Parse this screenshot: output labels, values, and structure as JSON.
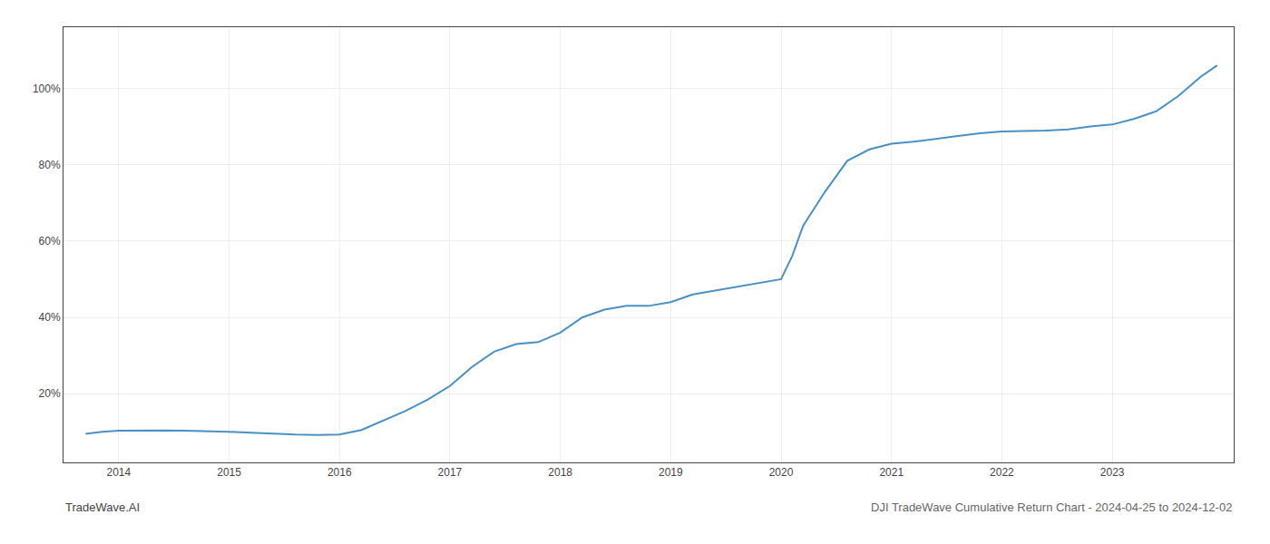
{
  "chart_data": {
    "type": "line",
    "title": "DJI TradeWave Cumulative Return Chart - 2024-04-25 to 2024-12-02",
    "annotations": [
      {
        "text": "TradeWave.AI"
      }
    ],
    "x": [
      2013.7,
      2013.85,
      2014.0,
      2014.2,
      2014.4,
      2014.6,
      2014.8,
      2015.0,
      2015.2,
      2015.4,
      2015.6,
      2015.8,
      2016.0,
      2016.2,
      2016.4,
      2016.6,
      2016.8,
      2017.0,
      2017.2,
      2017.4,
      2017.6,
      2017.8,
      2018.0,
      2018.2,
      2018.4,
      2018.6,
      2018.8,
      2019.0,
      2019.2,
      2019.4,
      2019.6,
      2019.8,
      2019.9,
      2020.0,
      2020.1,
      2020.2,
      2020.4,
      2020.6,
      2020.8,
      2021.0,
      2021.2,
      2021.4,
      2021.6,
      2021.8,
      2022.0,
      2022.2,
      2022.4,
      2022.6,
      2022.8,
      2023.0,
      2023.2,
      2023.4,
      2023.6,
      2023.8,
      2023.95
    ],
    "values": [
      0.095,
      0.1,
      0.103,
      0.104,
      0.104,
      0.103,
      0.102,
      0.1,
      0.098,
      0.095,
      0.093,
      0.092,
      0.093,
      0.105,
      0.13,
      0.155,
      0.185,
      0.22,
      0.27,
      0.31,
      0.33,
      0.335,
      0.36,
      0.4,
      0.42,
      0.43,
      0.43,
      0.44,
      0.46,
      0.47,
      0.48,
      0.49,
      0.495,
      0.5,
      0.56,
      0.64,
      0.73,
      0.81,
      0.84,
      0.855,
      0.86,
      0.868,
      0.875,
      0.882,
      0.887,
      0.888,
      0.889,
      0.892,
      0.9,
      0.905,
      0.92,
      0.94,
      0.98,
      1.03,
      1.06
    ],
    "color": "#4a90c4",
    "xlim": [
      2013.5,
      2024.1
    ],
    "xticks": [
      2014,
      2015,
      2016,
      2017,
      2018,
      2019,
      2020,
      2021,
      2022,
      2023
    ],
    "ylim": [
      0.02,
      1.16
    ],
    "yticks": [
      {
        "value": 0.2,
        "label": "20%"
      },
      {
        "value": 0.4,
        "label": "40%"
      },
      {
        "value": 0.6,
        "label": "60%"
      },
      {
        "value": 0.8,
        "label": "80%"
      },
      {
        "value": 1.0,
        "label": "100%"
      }
    ],
    "grid": true
  }
}
